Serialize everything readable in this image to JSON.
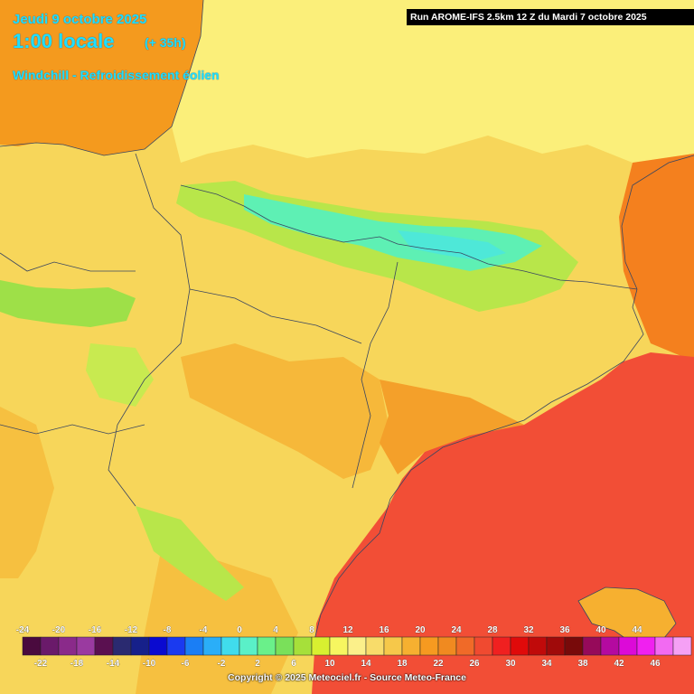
{
  "header": {
    "date": "Jeudi 9 octobre 2025",
    "hour": "1:00 locale",
    "lead": "(+ 35h)",
    "parameter": "Windchill - Refroidissement éolien"
  },
  "run_info": "Run AROME-IFS 2.5km 12 Z du Mardi 7 octobre 2025",
  "copyright": "Copyright © 2025 Meteociel.fr - Source Meteo-France",
  "legend": {
    "upper_labels": [
      "-24",
      "-20",
      "-16",
      "-12",
      "-8",
      "-4",
      "0",
      "4",
      "8",
      "12",
      "16",
      "20",
      "24",
      "28",
      "32",
      "36",
      "40",
      "44"
    ],
    "lower_labels": [
      "-22",
      "-18",
      "-14",
      "-10",
      "-6",
      "-2",
      "2",
      "6",
      "10",
      "14",
      "18",
      "22",
      "26",
      "30",
      "34",
      "38",
      "42",
      "46"
    ],
    "colors": [
      "#4a0a3e",
      "#6a1a6a",
      "#8a2a8a",
      "#9a3aa0",
      "#5a1050",
      "#2a2a70",
      "#16208a",
      "#0a0ad0",
      "#1a3af0",
      "#1a7ef5",
      "#2aaef8",
      "#40dcec",
      "#5af0c8",
      "#6af08a",
      "#7ae05a",
      "#a6e03a",
      "#d8f030",
      "#f6f660",
      "#fbf08a",
      "#f8dc6a",
      "#f6c84a",
      "#f6b030",
      "#f69a20",
      "#f08a20",
      "#f06a28",
      "#f04a30",
      "#f02020",
      "#e00a0a",
      "#c00a0a",
      "#a00a0a",
      "#780a0a",
      "#960a5a",
      "#b40aa0",
      "#dc0ad8",
      "#f020f0",
      "#f26af2",
      "#f5a0f5"
    ]
  }
}
